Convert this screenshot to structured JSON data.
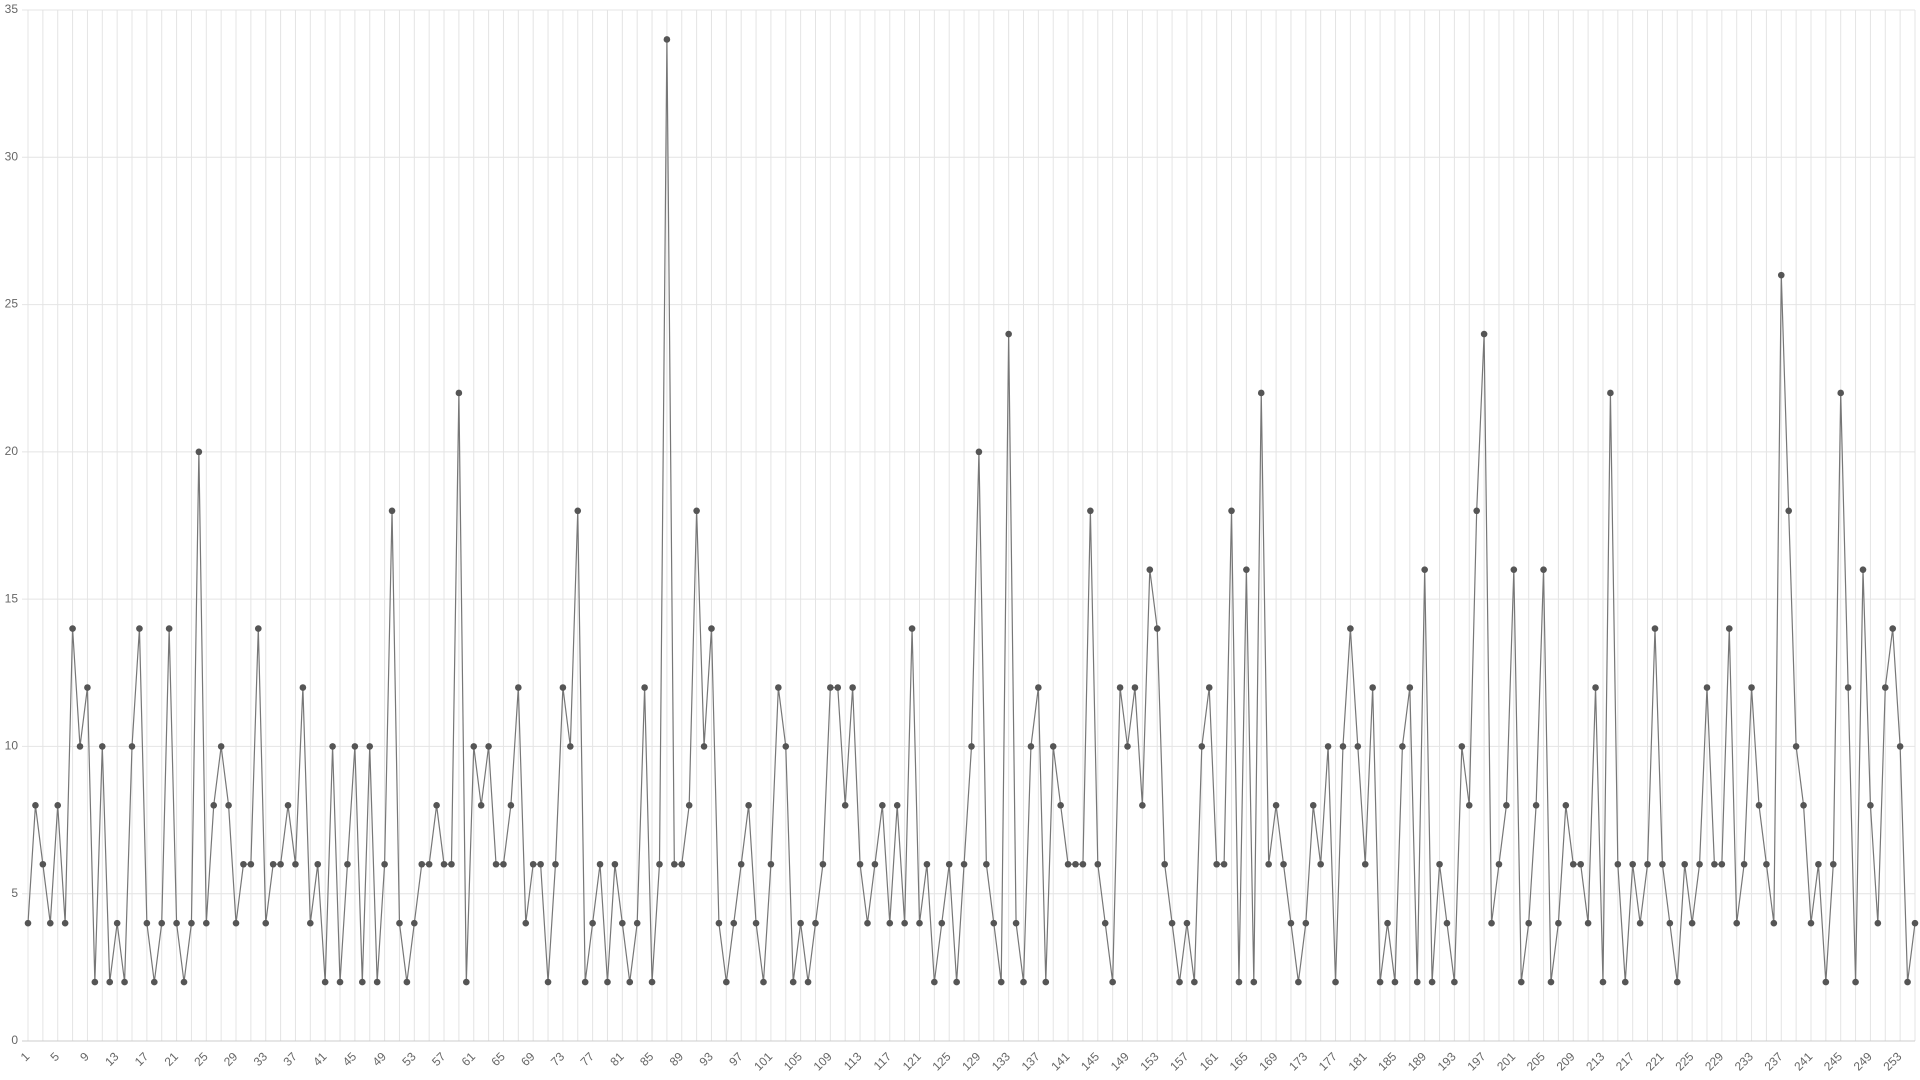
{
  "chart_data": {
    "type": "line",
    "categories": [
      1,
      null,
      null,
      null,
      5,
      null,
      null,
      null,
      9,
      null,
      null,
      null,
      13,
      null,
      null,
      null,
      17,
      null,
      null,
      null,
      21,
      null,
      null,
      null,
      25,
      null,
      null,
      null,
      29,
      null,
      null,
      null,
      33,
      null,
      null,
      null,
      37,
      null,
      null,
      null,
      41,
      null,
      null,
      null,
      45,
      null,
      null,
      null,
      49,
      null,
      null,
      null,
      53,
      null,
      null,
      null,
      57,
      null,
      null,
      null,
      61,
      null,
      null,
      null,
      65,
      null,
      null,
      null,
      69,
      null,
      null,
      null,
      73,
      null,
      null,
      null,
      77,
      null,
      null,
      null,
      81,
      null,
      null,
      null,
      85,
      null,
      null,
      null,
      89,
      null,
      null,
      null,
      93,
      null,
      null,
      null,
      97,
      null,
      null,
      null,
      101,
      null,
      null,
      null,
      105,
      null,
      null,
      null,
      109,
      null,
      null,
      null,
      113,
      null,
      null,
      null,
      117,
      null,
      null,
      null,
      121,
      null,
      null,
      null,
      125,
      null,
      null,
      null,
      129,
      null,
      null,
      null,
      133,
      null,
      null,
      null,
      137,
      null,
      null,
      null,
      141,
      null,
      null,
      null,
      145,
      null,
      null,
      null,
      149,
      null,
      null,
      null,
      153,
      null,
      null,
      null,
      157,
      null,
      null,
      null,
      161,
      null,
      null,
      null,
      165,
      null,
      null,
      null,
      169,
      null,
      null,
      null,
      173,
      null,
      null,
      null,
      177,
      null,
      null,
      null,
      181,
      null,
      null,
      null,
      185,
      null,
      null,
      null,
      189,
      null,
      null,
      null,
      193,
      null,
      null,
      null,
      197,
      null,
      null,
      null,
      201,
      null,
      null,
      null,
      205,
      null,
      null,
      null,
      209,
      null,
      null,
      null,
      213,
      null,
      null,
      null,
      217,
      null,
      null,
      null,
      221,
      null,
      null,
      null,
      225,
      null,
      null,
      null,
      229,
      null,
      null,
      null,
      233,
      null,
      null,
      null,
      237,
      null,
      null,
      null,
      241,
      null,
      null,
      null,
      245,
      null,
      null,
      null,
      249,
      null,
      null,
      null,
      253,
      null,
      null
    ],
    "values": [
      4,
      8,
      6,
      4,
      8,
      4,
      14,
      10,
      12,
      2,
      10,
      2,
      4,
      2,
      10,
      14,
      4,
      2,
      4,
      14,
      4,
      2,
      4,
      20,
      4,
      8,
      10,
      8,
      4,
      6,
      6,
      14,
      4,
      6,
      6,
      8,
      6,
      12,
      4,
      6,
      2,
      10,
      2,
      6,
      10,
      2,
      10,
      2,
      6,
      18,
      4,
      2,
      4,
      6,
      6,
      8,
      6,
      6,
      22,
      2,
      10,
      8,
      10,
      6,
      6,
      8,
      12,
      4,
      6,
      6,
      2,
      6,
      12,
      10,
      18,
      2,
      4,
      6,
      2,
      6,
      4,
      2,
      4,
      12,
      2,
      6,
      34,
      6,
      6,
      8,
      18,
      10,
      14,
      4,
      2,
      4,
      6,
      8,
      4,
      2,
      6,
      12,
      10,
      2,
      4,
      2,
      4,
      6,
      12,
      12,
      8,
      12,
      6,
      4,
      6,
      8,
      4,
      8,
      4,
      14,
      4,
      6,
      2,
      4,
      6,
      2,
      6,
      10,
      20,
      6,
      4,
      2,
      24,
      4,
      2,
      10,
      12,
      2,
      10,
      8,
      6,
      6,
      6,
      18,
      6,
      4,
      2,
      12,
      10,
      12,
      8,
      16,
      14,
      6,
      4,
      2,
      4,
      2,
      10,
      12,
      6,
      6,
      18,
      2,
      16,
      2,
      22,
      6,
      8,
      6,
      4,
      2,
      4,
      8,
      6,
      10,
      2,
      10,
      14,
      10,
      6,
      12,
      2,
      4,
      2,
      10,
      12,
      2,
      16,
      2,
      6,
      4,
      2,
      10,
      8,
      18,
      24,
      4,
      6,
      8,
      16,
      2,
      4,
      8,
      16,
      2,
      4,
      8,
      6,
      6,
      4,
      12,
      2,
      22,
      6,
      2,
      6,
      4,
      6,
      14,
      6,
      4,
      2,
      6,
      4,
      6,
      12,
      6,
      6,
      14,
      4,
      6,
      12,
      8,
      6,
      4,
      26,
      18,
      10,
      8,
      4,
      6,
      2,
      6,
      22,
      12,
      2,
      16,
      8,
      4,
      12,
      14,
      10,
      2,
      4
    ],
    "color": "#555555",
    "ylim": [
      0,
      35
    ],
    "yticks": [
      0,
      5,
      10,
      15,
      20,
      25,
      30,
      35
    ],
    "grid": true
  }
}
